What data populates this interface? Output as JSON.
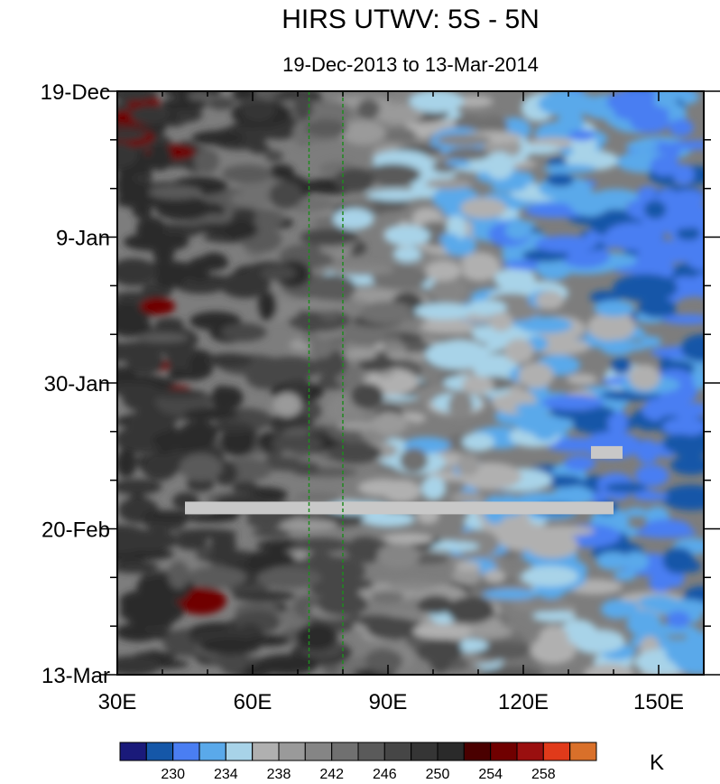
{
  "chart_data": {
    "type": "heatmap",
    "title": "HIRS UTWV: 5S - 5N",
    "subtitle": "19-Dec-2013 to 13-Mar-2014",
    "xlabel": "",
    "ylabel": "",
    "units": "K",
    "x_ticks": [
      {
        "value": 30,
        "label": "30E"
      },
      {
        "value": 60,
        "label": "60E"
      },
      {
        "value": 90,
        "label": "90E"
      },
      {
        "value": 120,
        "label": "120E"
      },
      {
        "value": 150,
        "label": "150E"
      }
    ],
    "xlim": [
      30,
      160
    ],
    "y_ticks": [
      {
        "value": "2013-12-19",
        "label": "19-Dec"
      },
      {
        "value": "2014-01-09",
        "label": "9-Jan"
      },
      {
        "value": "2014-01-30",
        "label": "30-Jan"
      },
      {
        "value": "2014-02-20",
        "label": "20-Feb"
      },
      {
        "value": "2014-03-13",
        "label": "13-Mar"
      }
    ],
    "ylim": [
      "2013-12-19",
      "2014-03-13"
    ],
    "y_reversed": true,
    "reference_lines_x": [
      72.5,
      80
    ],
    "reference_line_color": "#1f8a1f",
    "missing_data_color": "#c8c8c8",
    "missing_segments": [
      {
        "date": "2014-02-17",
        "x_start": 45,
        "x_end": 140
      },
      {
        "date": "2014-02-09",
        "x_start": 135,
        "x_end": 142
      }
    ],
    "contour_levels": [
      230,
      232,
      234,
      236,
      238,
      240,
      242,
      244,
      246,
      248,
      250,
      252,
      254,
      256,
      258,
      260
    ],
    "colorbar_labels": [
      "230",
      "234",
      "238",
      "242",
      "246",
      "250",
      "254",
      "258"
    ],
    "colorbar_colors": [
      "#1a1a7a",
      "#1557a8",
      "#4a7ef2",
      "#5aa9ea",
      "#a8d3e8",
      "#b0b0b0",
      "#9a9a9a",
      "#858585",
      "#707070",
      "#5a5a5a",
      "#464646",
      "#353535",
      "#2a2a2a",
      "#4a0000",
      "#700000",
      "#9a0f0f",
      "#e03a1a",
      "#d9702a"
    ]
  }
}
